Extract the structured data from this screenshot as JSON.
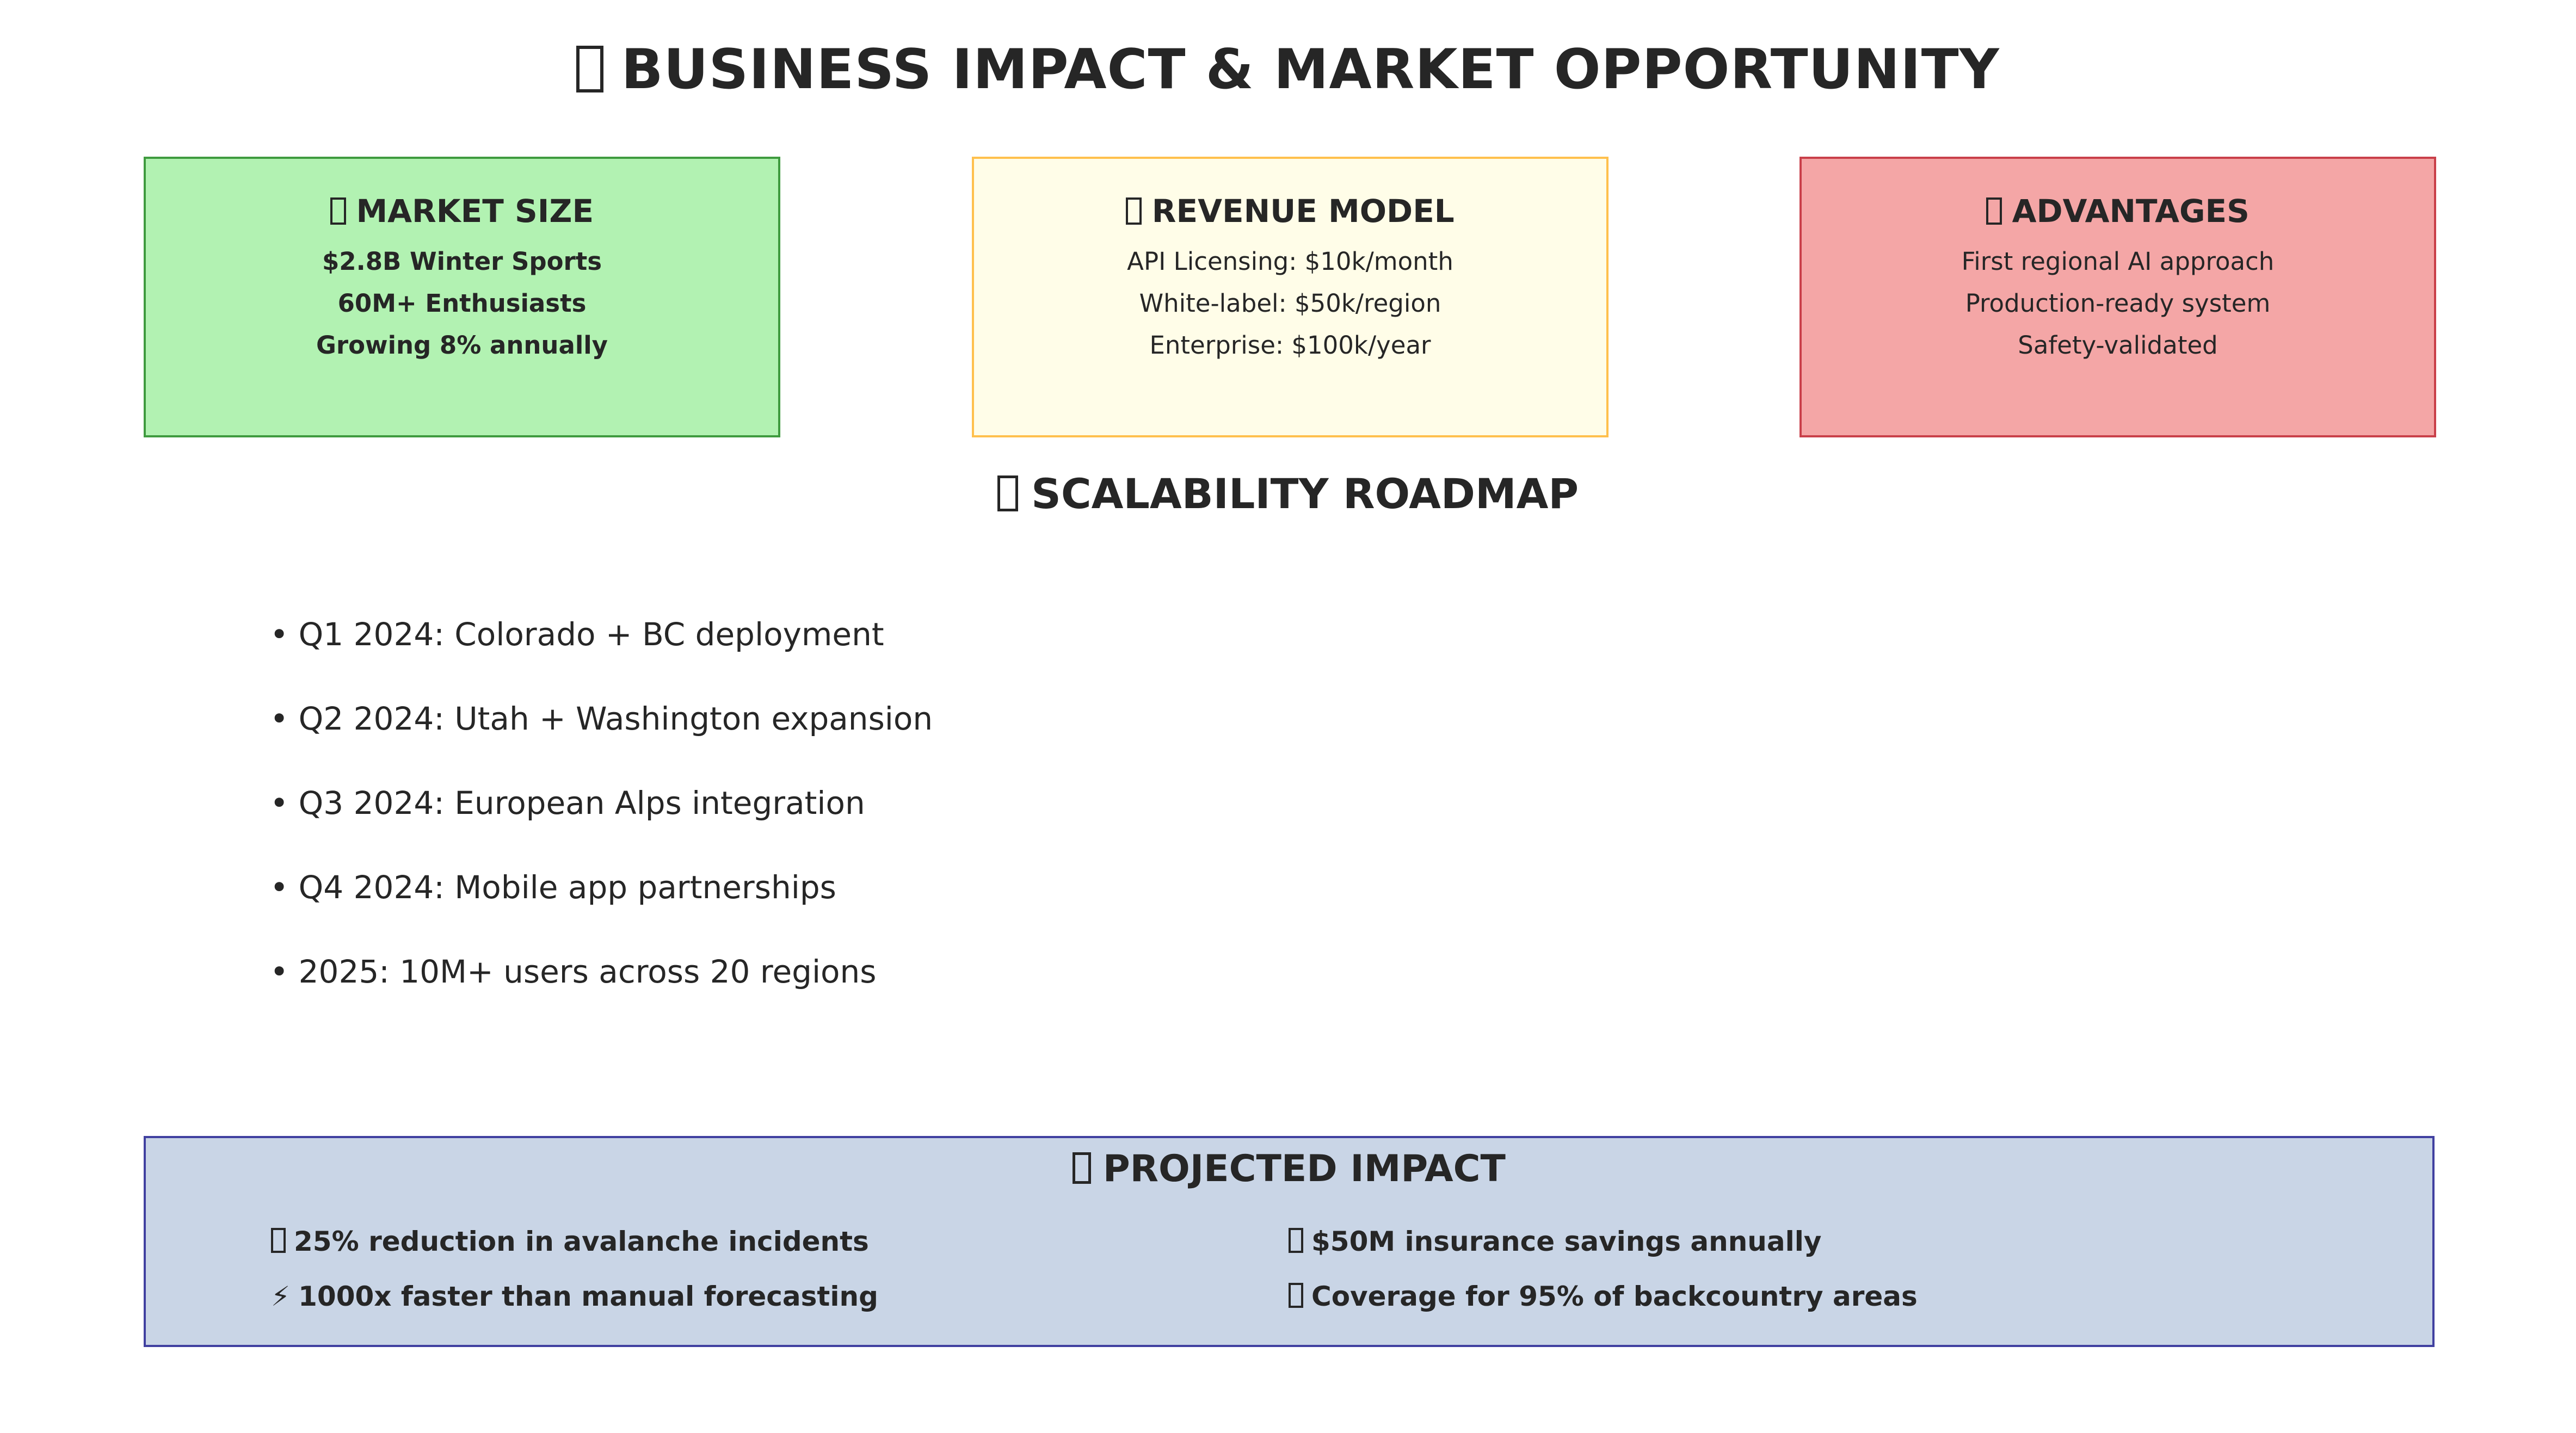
{
  "title": "BUSINESS IMPACT & MARKET OPPORTUNITY",
  "cards": [
    {
      "title": "MARKET SIZE",
      "lines": [
        "$2.8B Winter Sports",
        "60M+ Enthusiasts",
        "Growing 8% annually"
      ],
      "background": "#b2f2b2",
      "border": "#3f9b3f"
    },
    {
      "title": "REVENUE MODEL",
      "lines": [
        "API Licensing: $10k/month",
        "White-label: $50k/region",
        "Enterprise: $100k/year"
      ],
      "background": "#fffde8",
      "border": "#ffc04d"
    },
    {
      "title": "ADVANTAGES",
      "lines": [
        "First regional AI approach",
        "Production-ready system",
        "Safety-validated"
      ],
      "background": "#f4a6a6",
      "border": "#c9404a"
    }
  ],
  "roadmap": {
    "heading": "SCALABILITY ROADMAP",
    "items": [
      "• Q1 2024: Colorado + BC deployment",
      "• Q2 2024: Utah + Washington expansion",
      "• Q3 2024: European Alps integration",
      "• Q4 2024: Mobile app partnerships",
      "• 2025: 10M+ users across 20 regions"
    ]
  },
  "impact": {
    "heading": "PROJECTED IMPACT",
    "items": [
      "25% reduction in avalanche incidents",
      "$50M insurance savings annually",
      "1000x faster than manual forecasting",
      "Coverage for 95% of backcountry areas"
    ],
    "bolt_symbol": "⚡",
    "background": "#c9d5e6",
    "border": "#4040a0"
  }
}
